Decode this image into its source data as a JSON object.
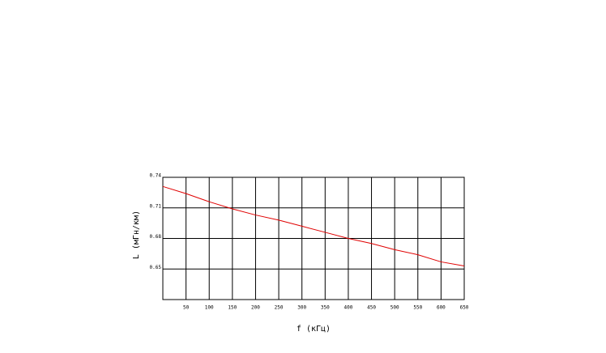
{
  "chart_data": {
    "type": "line",
    "x_label": "f (кГц)",
    "y_label": "L (мГн/км)",
    "x": [
      0,
      50,
      100,
      150,
      200,
      250,
      300,
      350,
      400,
      450,
      500,
      550,
      600,
      650
    ],
    "values": [
      0.731,
      0.724,
      0.716,
      0.709,
      0.703,
      0.698,
      0.692,
      0.686,
      0.68,
      0.675,
      0.669,
      0.664,
      0.657,
      0.653
    ],
    "color": "#e00000",
    "xlim": [
      0,
      650
    ],
    "xticks": [
      50,
      100,
      150,
      200,
      250,
      300,
      350,
      400,
      450,
      500,
      550,
      600,
      650
    ],
    "ylim": [
      0.62,
      0.74
    ],
    "yticks": [
      0.65,
      0.68,
      0.71,
      0.74
    ],
    "grid": true
  }
}
